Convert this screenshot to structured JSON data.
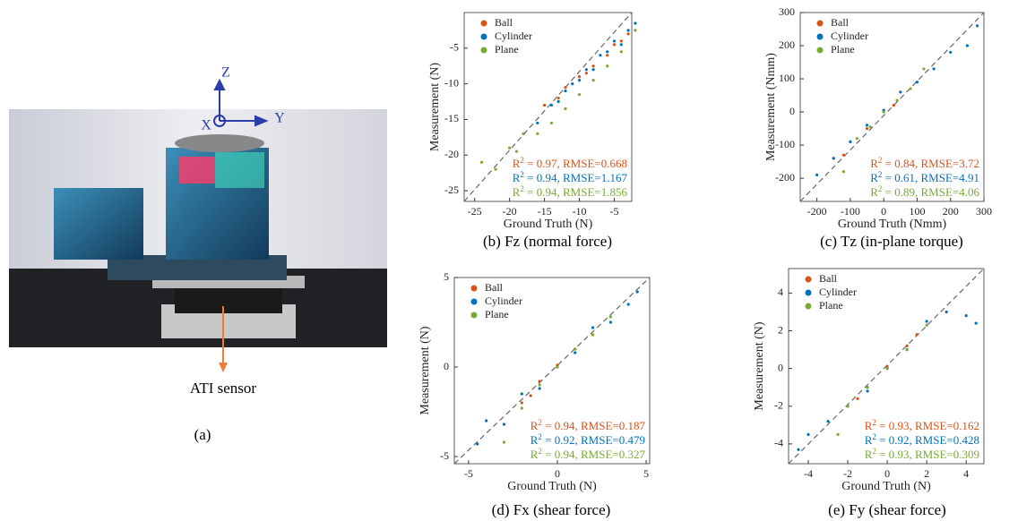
{
  "photo": {
    "axes": [
      "Z",
      "X",
      "Y"
    ],
    "sensor_label": "ATI sensor",
    "caption": "(a)"
  },
  "chart_data": [
    {
      "type": "scatter",
      "caption": "(b) Fz (normal force)",
      "xlabel": "Ground Truth (N)",
      "ylabel": "Measurement (N)",
      "xlim": [
        -26.5,
        -2.5
      ],
      "ylim": [
        -26.5,
        0
      ],
      "xticks": [
        -25,
        -20,
        -15,
        -10,
        -5
      ],
      "yticks": [
        -25,
        -20,
        -15,
        -10,
        -5
      ],
      "series": [
        {
          "name": "Ball",
          "color": "#d95319",
          "x": [
            -15,
            -13,
            -12,
            -10,
            -9,
            -8,
            -6,
            -5,
            -4,
            -3
          ],
          "y": [
            -13,
            -12,
            -10.5,
            -9,
            -8.5,
            -7.5,
            -6,
            -4.5,
            -4,
            -3
          ],
          "annotation": {
            "base": "R",
            "sup": "2",
            "text": " = 0.97, RMSE=0.668"
          }
        },
        {
          "name": "Cylinder",
          "color": "#0072bd",
          "x": [
            -18,
            -16,
            -14,
            -13,
            -12,
            -11,
            -10,
            -9,
            -8,
            -7,
            -6,
            -5,
            -4,
            -3,
            -2
          ],
          "y": [
            -17,
            -15.5,
            -13,
            -12.5,
            -11,
            -10,
            -9.5,
            -8,
            -8,
            -6,
            -5.5,
            -4,
            -4.5,
            -2.5,
            -1.5
          ],
          "annotation": {
            "base": "R",
            "sup": "2",
            "text": " = 0.94, RMSE=1.167"
          }
        },
        {
          "name": "Plane",
          "color": "#77ac30",
          "x": [
            -24,
            -22,
            -20,
            -19,
            -18,
            -16,
            -14,
            -12,
            -10,
            -8,
            -6,
            -4,
            -2
          ],
          "y": [
            -21,
            -22,
            -19,
            -19.5,
            -17,
            -17,
            -15.5,
            -13.5,
            -11.5,
            -9.5,
            -7.5,
            -5.5,
            -2.5
          ],
          "annotation": {
            "base": "R",
            "sup": "2",
            "text": " = 0.94, RMSE=1.856"
          }
        }
      ]
    },
    {
      "type": "scatter",
      "caption": "(c) Tz (in-plane torque)",
      "xlabel": "Ground Truth (Nmm)",
      "ylabel": "Measurement (Nmm)",
      "xlim": [
        -250,
        300
      ],
      "ylim": [
        -270,
        300
      ],
      "xticks": [
        -200,
        -100,
        0,
        100,
        200,
        300
      ],
      "yticks": [
        -200,
        -100,
        0,
        100,
        200,
        300
      ],
      "series": [
        {
          "name": "Ball",
          "color": "#d95319",
          "x": [
            -150,
            -120,
            -100,
            -50,
            0,
            30
          ],
          "y": [
            -140,
            -130,
            -90,
            -50,
            5,
            20
          ],
          "annotation": {
            "base": "R",
            "sup": "2",
            "text": " = 0.84, RMSE=3.72"
          }
        },
        {
          "name": "Cylinder",
          "color": "#0072bd",
          "x": [
            -200,
            -150,
            -100,
            -50,
            0,
            50,
            100,
            150,
            200,
            250,
            280
          ],
          "y": [
            -190,
            -140,
            -90,
            -40,
            5,
            60,
            90,
            130,
            180,
            200,
            260
          ],
          "annotation": {
            "base": "R",
            "sup": "2",
            "text": " = 0.61, RMSE=4.91"
          }
        },
        {
          "name": "Plane",
          "color": "#77ac30",
          "x": [
            -120,
            -80,
            -40,
            0,
            40,
            80,
            120
          ],
          "y": [
            -180,
            -80,
            -45,
            0,
            35,
            70,
            130
          ],
          "annotation": {
            "base": "R",
            "sup": "2",
            "text": " = 0.89, RMSE=4.06"
          }
        }
      ]
    },
    {
      "type": "scatter",
      "caption": "(d) Fx (shear force)",
      "xlabel": "Ground Truth (N)",
      "ylabel": "Measurement (N)",
      "xlim": [
        -5.8,
        5.2
      ],
      "ylim": [
        -5.4,
        5
      ],
      "xticks": [
        -5,
        0,
        5
      ],
      "yticks": [
        -5,
        0,
        5
      ],
      "series": [
        {
          "name": "Ball",
          "color": "#d95319",
          "x": [
            -2,
            -1.5,
            -1,
            0,
            1,
            2
          ],
          "y": [
            -2,
            -1.6,
            -0.8,
            0.1,
            1,
            1.8
          ],
          "annotation": {
            "base": "R",
            "sup": "2",
            "text": " = 0.94, RMSE=0.187"
          }
        },
        {
          "name": "Cylinder",
          "color": "#0072bd",
          "x": [
            -4.5,
            -4,
            -3,
            -2,
            -1,
            0,
            1,
            2,
            3,
            4,
            4.5
          ],
          "y": [
            -4.3,
            -3,
            -3.2,
            -1.5,
            -1.2,
            0,
            0.8,
            2.2,
            2.5,
            3.5,
            4.2
          ],
          "annotation": {
            "base": "R",
            "sup": "2",
            "text": " = 0.92, RMSE=0.479"
          }
        },
        {
          "name": "Plane",
          "color": "#77ac30",
          "x": [
            -3,
            -2,
            -1,
            0,
            1,
            2,
            3
          ],
          "y": [
            -4.2,
            -2.3,
            -1,
            0,
            1,
            1.8,
            2.8
          ],
          "annotation": {
            "base": "R",
            "sup": "2",
            "text": " = 0.94, RMSE=0.327"
          }
        }
      ]
    },
    {
      "type": "scatter",
      "caption": "(e) Fy (shear force)",
      "xlabel": "Ground Truth (N)",
      "ylabel": "Measurement (N)",
      "xlim": [
        -5,
        4.9
      ],
      "ylim": [
        -5.05,
        5.3
      ],
      "xticks": [
        -4,
        -2,
        0,
        2,
        4
      ],
      "yticks": [
        -4,
        -2,
        0,
        2,
        4
      ],
      "series": [
        {
          "name": "Ball",
          "color": "#d95319",
          "x": [
            -1.5,
            -1,
            0,
            1,
            1.5
          ],
          "y": [
            -1.6,
            -1,
            0.1,
            1.2,
            1.8
          ],
          "annotation": {
            "base": "R",
            "sup": "2",
            "text": " = 0.93, RMSE=0.162"
          }
        },
        {
          "name": "Cylinder",
          "color": "#0072bd",
          "x": [
            -4.5,
            -4,
            -3,
            -2,
            -1,
            0,
            1,
            2,
            3,
            4,
            4.5
          ],
          "y": [
            -4.3,
            -3.5,
            -2.8,
            -2,
            -1.2,
            0,
            1,
            2.5,
            3,
            2.8,
            2.4
          ],
          "annotation": {
            "base": "R",
            "sup": "2",
            "text": " = 0.92, RMSE=0.428"
          }
        },
        {
          "name": "Plane",
          "color": "#77ac30",
          "x": [
            -2.5,
            -2,
            -1,
            0,
            1,
            2
          ],
          "y": [
            -3.5,
            -2,
            -1,
            0,
            1,
            2.3
          ],
          "annotation": {
            "base": "R",
            "sup": "2",
            "text": " = 0.93, RMSE=0.309"
          }
        }
      ]
    }
  ]
}
